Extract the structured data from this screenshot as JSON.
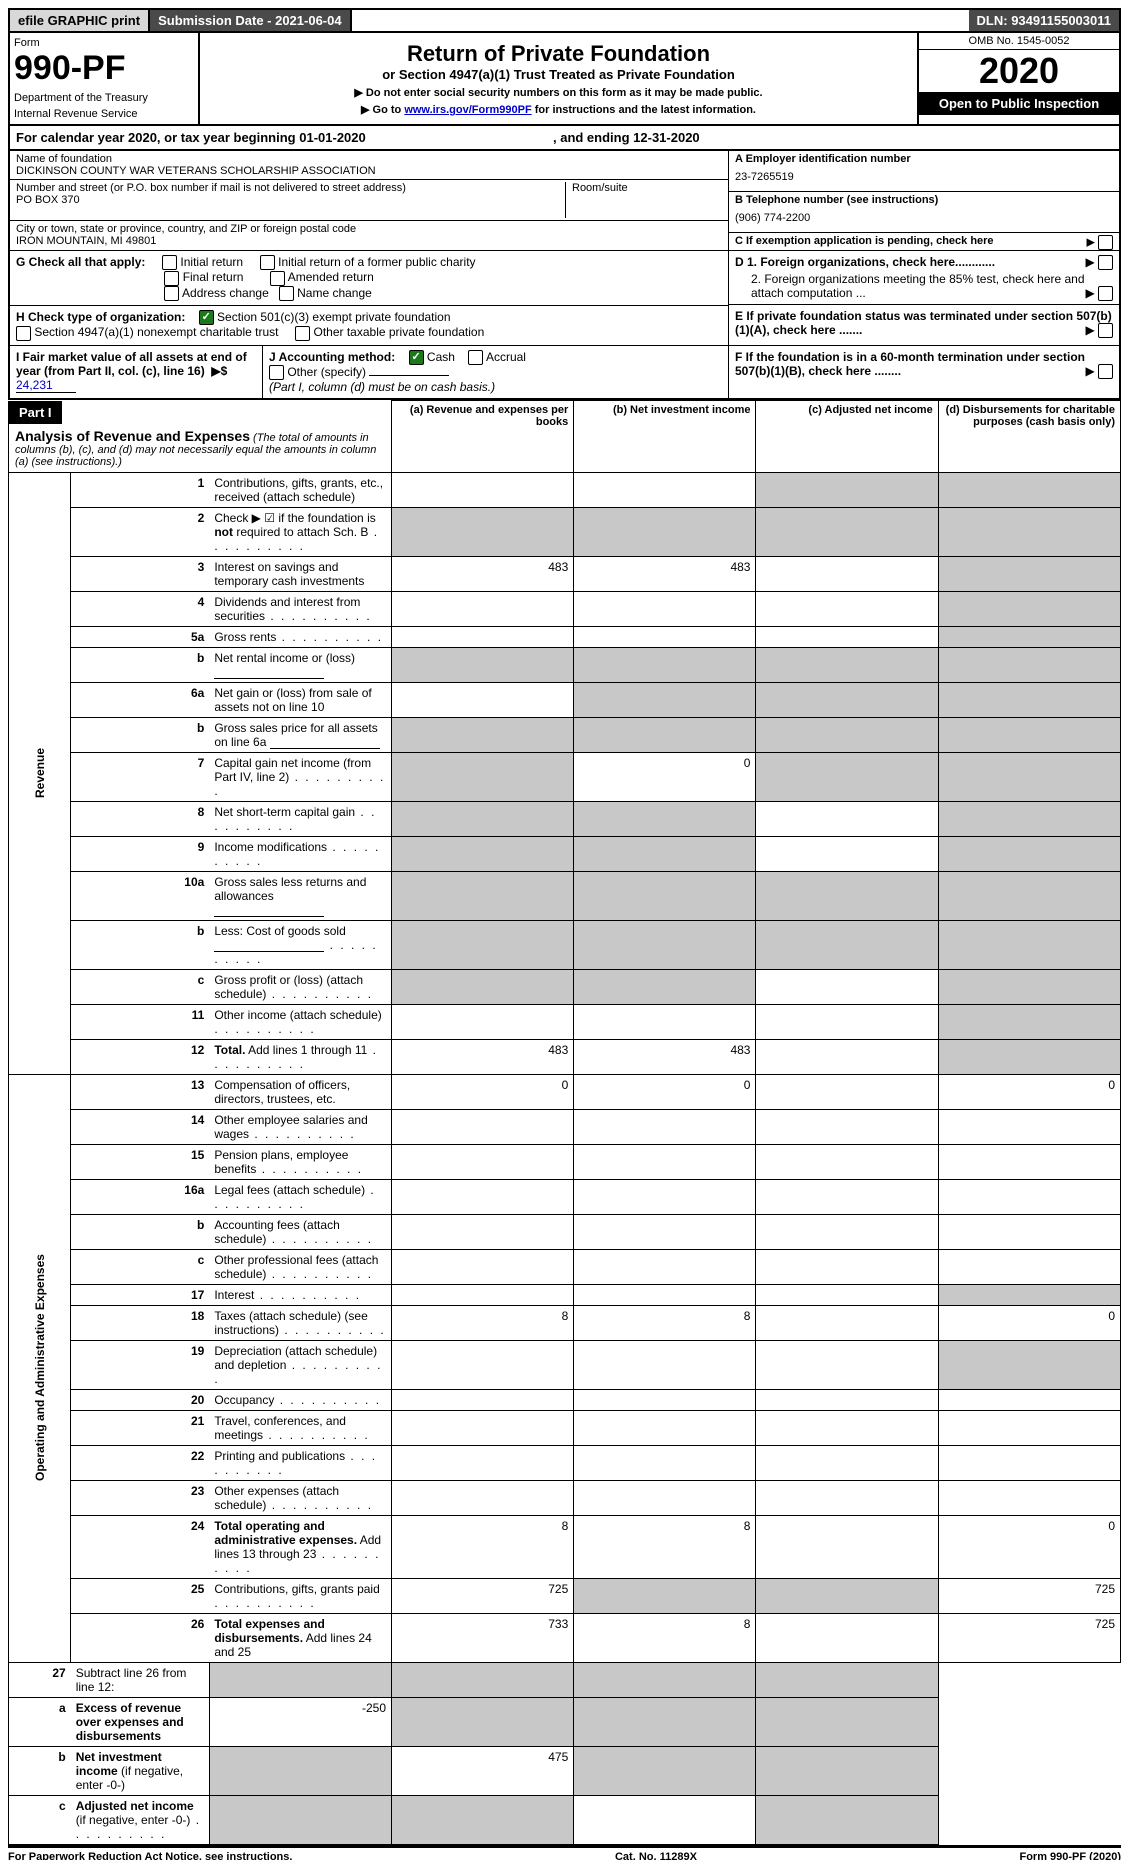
{
  "top": {
    "efile": "efile GRAPHIC print",
    "submission": "Submission Date - 2021-06-04",
    "dln": "DLN: 93491155003011"
  },
  "header": {
    "form_label": "Form",
    "form_number": "990-PF",
    "dept": "Department of the Treasury",
    "irs": "Internal Revenue Service",
    "title": "Return of Private Foundation",
    "subtitle": "or Section 4947(a)(1) Trust Treated as Private Foundation",
    "instruct1": "▶ Do not enter social security numbers on this form as it may be made public.",
    "instruct2_pre": "▶ Go to ",
    "instruct2_link": "www.irs.gov/Form990PF",
    "instruct2_post": " for instructions and the latest information.",
    "omb": "OMB No. 1545-0052",
    "year": "2020",
    "open": "Open to Public Inspection"
  },
  "cal": {
    "text_pre": "For calendar year 2020, or tax year beginning ",
    "begin": "01-01-2020",
    "mid": " , and ending ",
    "end": "12-31-2020"
  },
  "id": {
    "name_label": "Name of foundation",
    "name": "DICKINSON COUNTY WAR VETERANS SCHOLARSHIP ASSOCIATION",
    "addr_label": "Number and street (or P.O. box number if mail is not delivered to street address)",
    "addr": "PO BOX 370",
    "room_label": "Room/suite",
    "city_label": "City or town, state or province, country, and ZIP or foreign postal code",
    "city": "IRON MOUNTAIN, MI  49801",
    "a_label": "A Employer identification number",
    "a_val": "23-7265519",
    "b_label": "B Telephone number (see instructions)",
    "b_val": "(906) 774-2200",
    "c_label": "C If exemption application is pending, check here"
  },
  "g": {
    "label": "G Check all that apply:",
    "opts": [
      "Initial return",
      "Initial return of a former public charity",
      "Final return",
      "Amended return",
      "Address change",
      "Name change"
    ]
  },
  "h": {
    "label": "H Check type of organization:",
    "opt1": "Section 501(c)(3) exempt private foundation",
    "opt2": "Section 4947(a)(1) nonexempt charitable trust",
    "opt3": "Other taxable private foundation"
  },
  "d": {
    "d1": "D 1. Foreign organizations, check here............",
    "d2": "2. Foreign organizations meeting the 85% test, check here and attach computation ..."
  },
  "e": {
    "label": "E  If private foundation status was terminated under section 507(b)(1)(A), check here ......."
  },
  "i": {
    "label": "I Fair market value of all assets at end of year (from Part II, col. (c), line 16)",
    "arrow": "▶$",
    "val": "24,231"
  },
  "j": {
    "label": "J Accounting method:",
    "cash": "Cash",
    "accrual": "Accrual",
    "other": "Other (specify)",
    "note": "(Part I, column (d) must be on cash basis.)"
  },
  "f": {
    "label": "F  If the foundation is in a 60-month termination under section 507(b)(1)(B), check here ........"
  },
  "part1": {
    "label": "Part I",
    "title": "Analysis of Revenue and Expenses",
    "note": "(The total of amounts in columns (b), (c), and (d) may not necessarily equal the amounts in column (a) (see instructions).)",
    "cols": {
      "a": "(a) Revenue and expenses per books",
      "b": "(b) Net investment income",
      "c": "(c) Adjusted net income",
      "d": "(d) Disbursements for charitable purposes (cash basis only)"
    }
  },
  "sections": {
    "revenue": "Revenue",
    "expenses": "Operating and Administrative Expenses"
  },
  "rows": [
    {
      "n": "1",
      "d": "Contributions, gifts, grants, etc., received (attach schedule)",
      "a": "",
      "b": "",
      "c": "G",
      "dg": "G"
    },
    {
      "n": "2",
      "d": "Check ▶ ☑ if the foundation is <b>not</b> required to attach Sch. B",
      "dots": 1,
      "a": "G",
      "b": "G",
      "c": "G",
      "dg": "G"
    },
    {
      "n": "3",
      "d": "Interest on savings and temporary cash investments",
      "a": "483",
      "b": "483",
      "c": "",
      "dg": "G"
    },
    {
      "n": "4",
      "d": "Dividends and interest from securities",
      "dots": 1,
      "a": "",
      "b": "",
      "c": "",
      "dg": "G"
    },
    {
      "n": "5a",
      "d": "Gross rents",
      "dots": 1,
      "a": "",
      "b": "",
      "c": "",
      "dg": "G"
    },
    {
      "n": "b",
      "d": "Net rental income or (loss)",
      "sub": 1,
      "a": "G",
      "b": "G",
      "c": "G",
      "dg": "G"
    },
    {
      "n": "6a",
      "d": "Net gain or (loss) from sale of assets not on line 10",
      "a": "",
      "b": "G",
      "c": "G",
      "dg": "G"
    },
    {
      "n": "b",
      "d": "Gross sales price for all assets on line 6a",
      "sub": 1,
      "a": "G",
      "b": "G",
      "c": "G",
      "dg": "G"
    },
    {
      "n": "7",
      "d": "Capital gain net income (from Part IV, line 2)",
      "dots": 1,
      "a": "G",
      "b": "0",
      "c": "G",
      "dg": "G"
    },
    {
      "n": "8",
      "d": "Net short-term capital gain",
      "dots": 1,
      "a": "G",
      "b": "G",
      "c": "",
      "dg": "G"
    },
    {
      "n": "9",
      "d": "Income modifications",
      "dots": 1,
      "a": "G",
      "b": "G",
      "c": "",
      "dg": "G"
    },
    {
      "n": "10a",
      "d": "Gross sales less returns and allowances",
      "sub": 1,
      "a": "G",
      "b": "G",
      "c": "G",
      "dg": "G"
    },
    {
      "n": "b",
      "d": "Less: Cost of goods sold",
      "dots": 1,
      "sub": 1,
      "a": "G",
      "b": "G",
      "c": "G",
      "dg": "G"
    },
    {
      "n": "c",
      "d": "Gross profit or (loss) (attach schedule)",
      "dots": 1,
      "a": "G",
      "b": "G",
      "c": "",
      "dg": "G"
    },
    {
      "n": "11",
      "d": "Other income (attach schedule)",
      "dots": 1,
      "a": "",
      "b": "",
      "c": "",
      "dg": "G"
    },
    {
      "n": "12",
      "d": "<b>Total.</b> Add lines 1 through 11",
      "dots": 1,
      "a": "483",
      "b": "483",
      "c": "",
      "dg": "G"
    }
  ],
  "exp_rows": [
    {
      "n": "13",
      "d": "Compensation of officers, directors, trustees, etc.",
      "a": "0",
      "b": "0",
      "c": "",
      "dg": "0"
    },
    {
      "n": "14",
      "d": "Other employee salaries and wages",
      "dots": 1,
      "a": "",
      "b": "",
      "c": "",
      "dg": ""
    },
    {
      "n": "15",
      "d": "Pension plans, employee benefits",
      "dots": 1,
      "a": "",
      "b": "",
      "c": "",
      "dg": ""
    },
    {
      "n": "16a",
      "d": "Legal fees (attach schedule)",
      "dots": 1,
      "a": "",
      "b": "",
      "c": "",
      "dg": ""
    },
    {
      "n": "b",
      "d": "Accounting fees (attach schedule)",
      "dots": 1,
      "a": "",
      "b": "",
      "c": "",
      "dg": ""
    },
    {
      "n": "c",
      "d": "Other professional fees (attach schedule)",
      "dots": 1,
      "a": "",
      "b": "",
      "c": "",
      "dg": ""
    },
    {
      "n": "17",
      "d": "Interest",
      "dots": 1,
      "a": "",
      "b": "",
      "c": "",
      "dg": "G"
    },
    {
      "n": "18",
      "d": "Taxes (attach schedule) (see instructions)",
      "dots": 1,
      "a": "8",
      "b": "8",
      "c": "",
      "dg": "0"
    },
    {
      "n": "19",
      "d": "Depreciation (attach schedule) and depletion",
      "dots": 1,
      "a": "",
      "b": "",
      "c": "",
      "dg": "G"
    },
    {
      "n": "20",
      "d": "Occupancy",
      "dots": 1,
      "a": "",
      "b": "",
      "c": "",
      "dg": ""
    },
    {
      "n": "21",
      "d": "Travel, conferences, and meetings",
      "dots": 1,
      "a": "",
      "b": "",
      "c": "",
      "dg": ""
    },
    {
      "n": "22",
      "d": "Printing and publications",
      "dots": 1,
      "a": "",
      "b": "",
      "c": "",
      "dg": ""
    },
    {
      "n": "23",
      "d": "Other expenses (attach schedule)",
      "dots": 1,
      "a": "",
      "b": "",
      "c": "",
      "dg": ""
    },
    {
      "n": "24",
      "d": "<b>Total operating and administrative expenses.</b> Add lines 13 through 23",
      "dots": 1,
      "a": "8",
      "b": "8",
      "c": "",
      "dg": "0"
    },
    {
      "n": "25",
      "d": "Contributions, gifts, grants paid",
      "dots": 1,
      "a": "725",
      "b": "G",
      "c": "G",
      "dg": "725"
    },
    {
      "n": "26",
      "d": "<b>Total expenses and disbursements.</b> Add lines 24 and 25",
      "a": "733",
      "b": "8",
      "c": "",
      "dg": "725"
    }
  ],
  "net_rows": [
    {
      "n": "27",
      "d": "Subtract line 26 from line 12:",
      "a": "G",
      "b": "G",
      "c": "G",
      "dg": "G"
    },
    {
      "n": "a",
      "d": "<b>Excess of revenue over expenses and disbursements</b>",
      "a": "-250",
      "b": "G",
      "c": "G",
      "dg": "G"
    },
    {
      "n": "b",
      "d": "<b>Net investment income</b> (if negative, enter -0-)",
      "a": "G",
      "b": "475",
      "c": "G",
      "dg": "G"
    },
    {
      "n": "c",
      "d": "<b>Adjusted net income</b> (if negative, enter -0-)",
      "dots": 1,
      "a": "G",
      "b": "G",
      "c": "",
      "dg": "G"
    }
  ],
  "footer": {
    "left": "For Paperwork Reduction Act Notice, see instructions.",
    "mid": "Cat. No. 11289X",
    "right": "Form 990-PF (2020)"
  }
}
